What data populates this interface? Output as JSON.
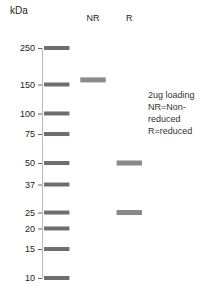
{
  "chart_data": {
    "type": "gel",
    "y_label": "kDa",
    "categories": [
      null,
      "NR",
      "R"
    ],
    "bands": [
      [],
      [
        160
      ],
      [
        50,
        25
      ]
    ],
    "ylim": [
      250,
      10
    ],
    "yticks": [
      250,
      150,
      100,
      75,
      50,
      37,
      25,
      20,
      15,
      10
    ],
    "log": "y",
    "annotations": [
      "2ug loading",
      "NR=Non-",
      "reduced",
      "R=reduced"
    ],
    "color": "#8a8a8a"
  }
}
